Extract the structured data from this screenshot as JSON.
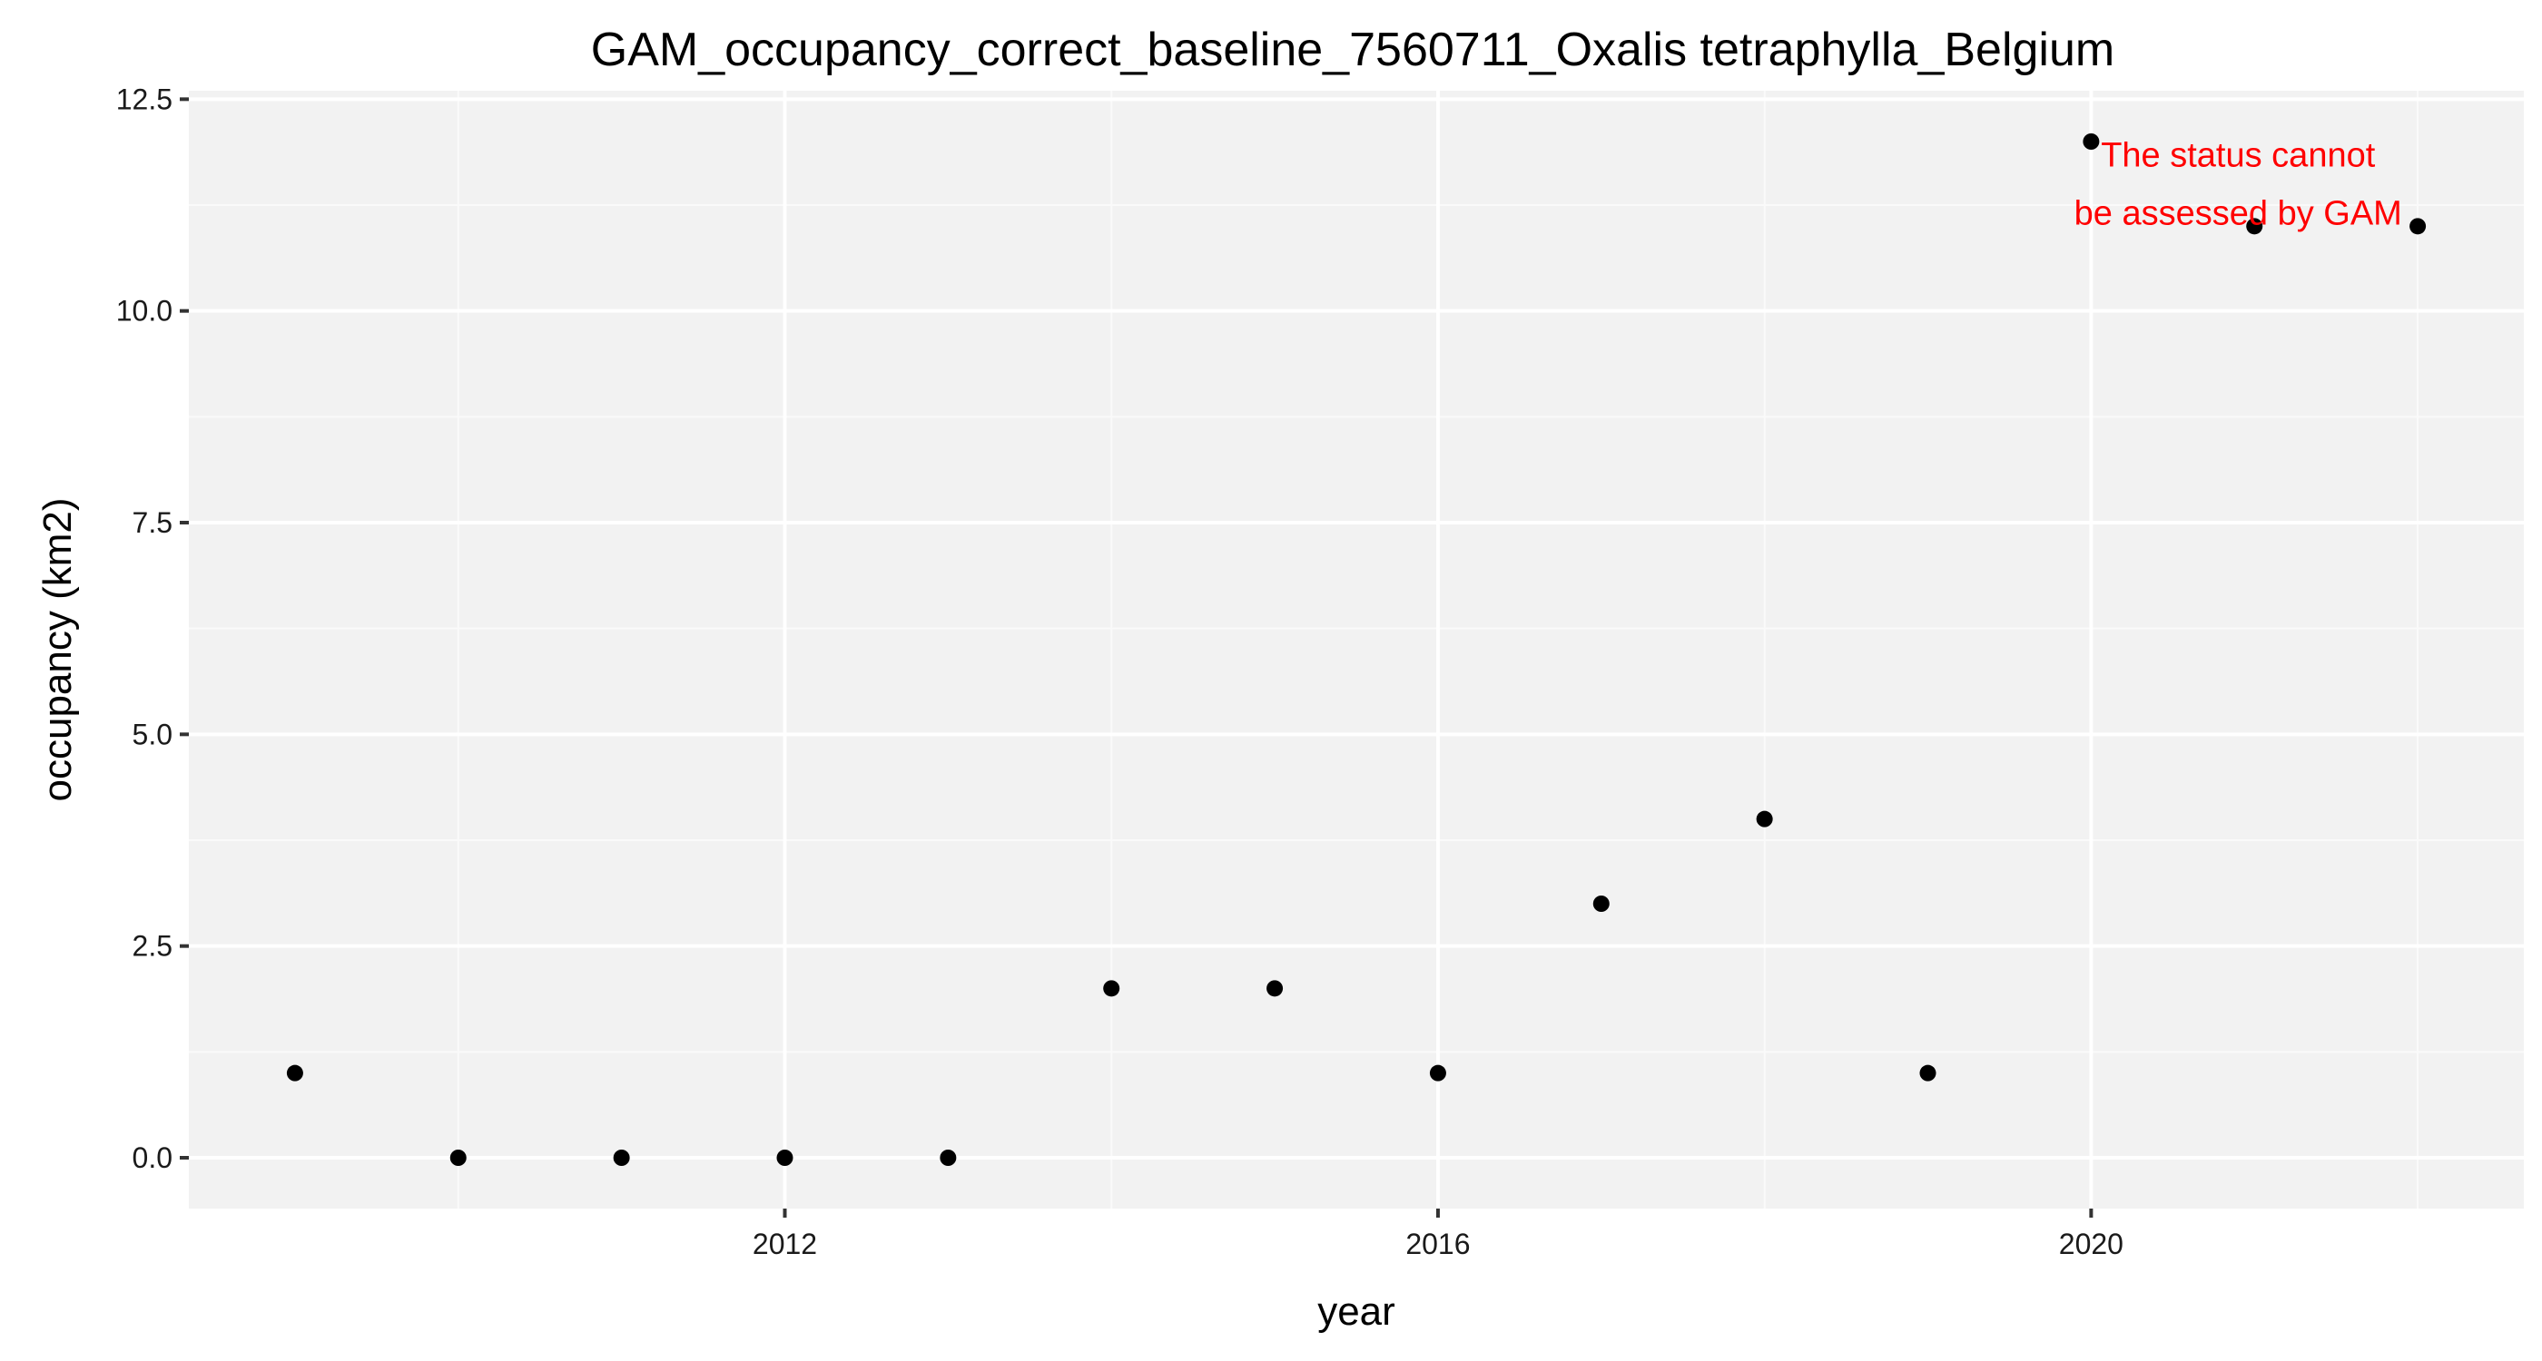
{
  "chart_data": {
    "type": "scatter",
    "title": "GAM_occupancy_correct_baseline_7560711_Oxalis tetraphylla_Belgium",
    "xlabel": "year",
    "ylabel": "occupancy (km2)",
    "x": [
      2009,
      2010,
      2011,
      2012,
      2013,
      2014,
      2015,
      2016,
      2017,
      2018,
      2019,
      2020,
      2021,
      2022
    ],
    "y": [
      1,
      0,
      0,
      0,
      0,
      2,
      2,
      1,
      3,
      4,
      1,
      12,
      11,
      11
    ],
    "xlim": [
      2008.35,
      2022.65
    ],
    "ylim": [
      -0.6,
      12.6
    ],
    "x_ticks": [
      2012,
      2016,
      2020
    ],
    "x_tick_labels": [
      "2012",
      "2016",
      "2020"
    ],
    "y_ticks": [
      0,
      2.5,
      5,
      7.5,
      10,
      12.5
    ],
    "y_tick_labels": [
      "0.0",
      "2.5",
      "5.0",
      "7.5",
      "10.0",
      "12.5"
    ],
    "grid": true,
    "legend": "none",
    "annotation": {
      "lines": [
        "The status cannot",
        "be assessed by GAM"
      ],
      "x": 2020.9,
      "y": 11.5,
      "color": "#ff0000"
    },
    "colors": {
      "panel_background": "#f2f2f2",
      "grid_major": "#ffffff",
      "grid_minor": "#fafafa",
      "point": "#000000",
      "tick": "#333333"
    }
  }
}
